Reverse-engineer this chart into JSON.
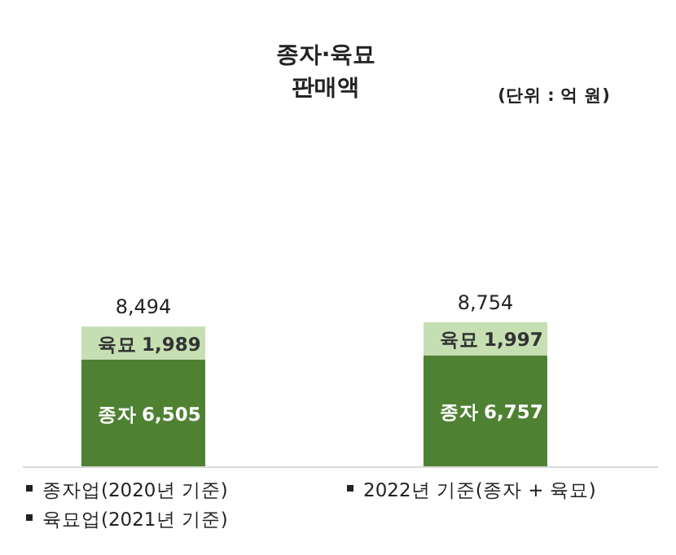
{
  "chart_data": {
    "type": "bar",
    "stacked": true,
    "title": "종자·육묘 판매액",
    "categories": [
      null,
      null
    ],
    "series": [
      {
        "name": "종자",
        "color": "#4f8133",
        "values": [
          6505,
          6757
        ],
        "value_labels": [
          "6,505",
          "6,757"
        ]
      },
      {
        "name": "육묘",
        "color": "#c5dfb3",
        "values": [
          1989,
          1997
        ],
        "value_labels": [
          "1,989",
          "1,997"
        ]
      }
    ],
    "totals": [
      "8,494",
      "8,754"
    ],
    "annotations": [
      "(단위 : 억 원)",
      "종자업(2020년 기준)",
      "육묘업(2021년 기준)",
      "2022년 기준(종자 + 육묘)"
    ]
  }
}
